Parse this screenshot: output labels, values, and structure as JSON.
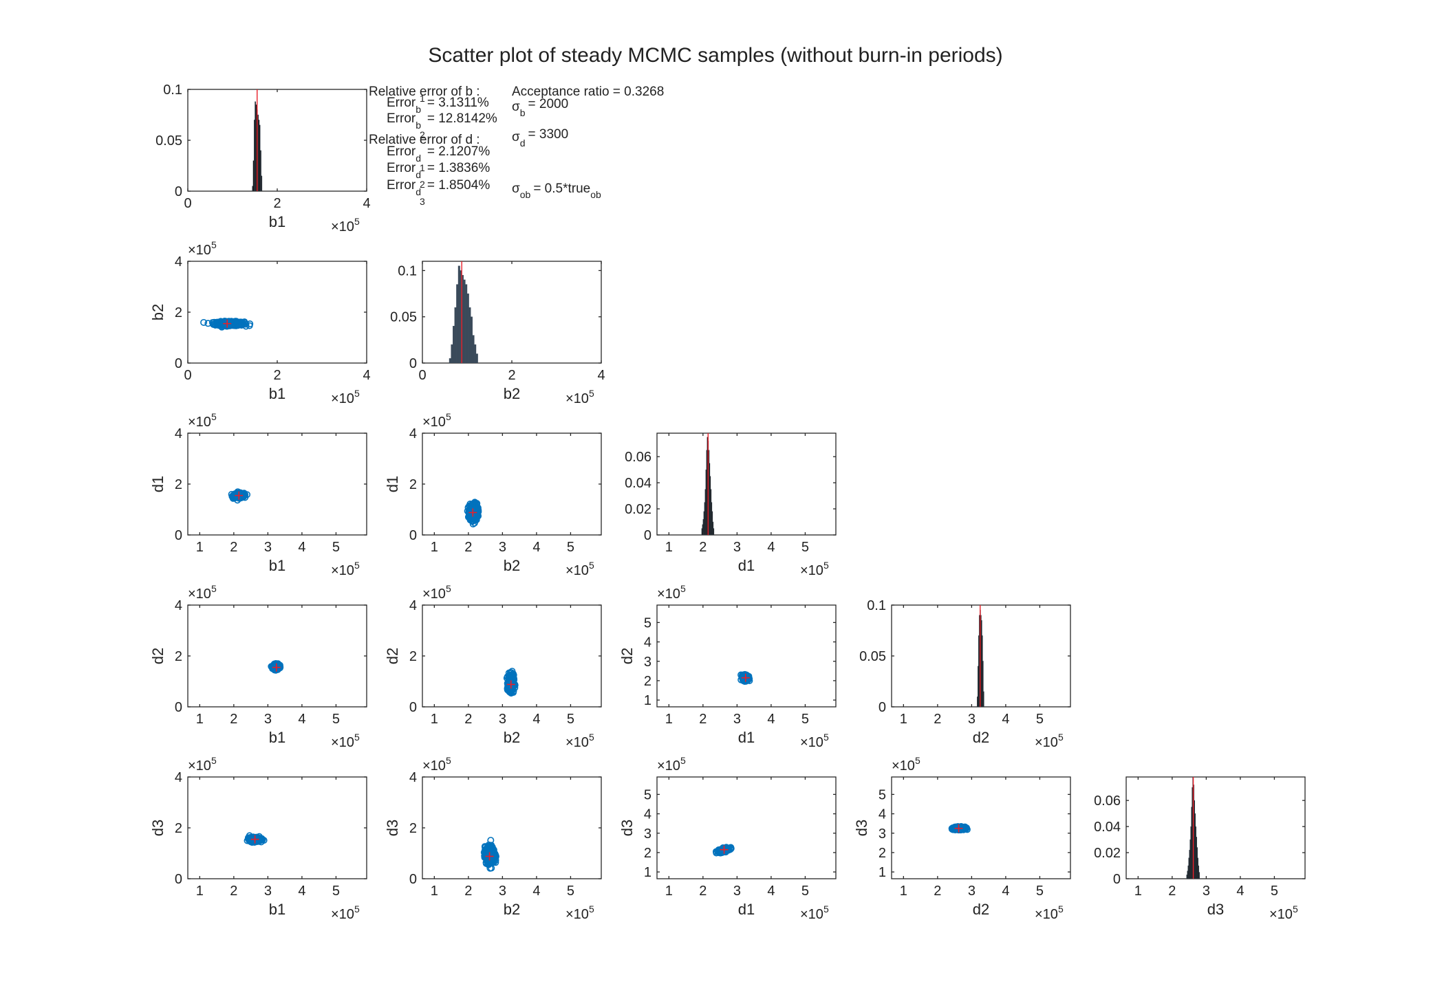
{
  "chart_data": {
    "type": "scatter",
    "title": "Scatter plot of steady MCMC samples (without burn-in periods)",
    "variables": [
      "b1",
      "b2",
      "d1",
      "d2",
      "d3"
    ],
    "colors": {
      "samples": "#0072BD",
      "true_marker": "#E8202A",
      "hist_bar": "#111111",
      "hist_edge": "#3A4A5A"
    },
    "multiplier_base": "×10",
    "multiplier_exp": "5",
    "annotations": {
      "b_header": "Relative error of b :",
      "error_word": "Error",
      "b1_sub": "b",
      "b1_sup": "1",
      "b1_value": "= 3.1311%",
      "b2_sub": "b",
      "b2_sup": "2",
      "b2_value": "= 12.8142%",
      "d_header": "Relative error of d :",
      "d1_sub": "d",
      "d1_sup": "1",
      "d1_value": "= 2.1207%",
      "d2_sub": "d",
      "d2_sup": "2",
      "d2_value": "= 1.3836%",
      "d3_sub": "d",
      "d3_sup": "3",
      "d3_value": "= 1.8504%",
      "acceptance": "Acceptance ratio = 0.3268",
      "sigma": "σ",
      "sigma_b_sub": "b",
      "sigma_b_value": "= 2000",
      "sigma_d_sub": "d",
      "sigma_d_value": "= 3300",
      "sigma_ob_sub": "ob",
      "sigma_ob_value": "= 0.5*true",
      "sigma_ob_tail_sub": "ob"
    },
    "panels": [
      {
        "row": 0,
        "col": 0,
        "kind": "hist",
        "xlabel": "b1",
        "xlim": [
          0,
          400000
        ],
        "xticks": [
          0,
          200000,
          400000
        ],
        "xticklabels": [
          "0",
          "2",
          "4"
        ],
        "ylim": [
          0,
          0.1
        ],
        "yticks": [
          0,
          0.05,
          0.1
        ],
        "yticklabels": [
          "0",
          "0.05",
          "0.1"
        ],
        "true_x": 155000,
        "peak": 0.1,
        "bin_width": 2000,
        "hist": [
          [
            144000,
            0.005
          ],
          [
            146000,
            0.03
          ],
          [
            148000,
            0.07
          ],
          [
            150000,
            0.088
          ],
          [
            152000,
            0.085
          ],
          [
            154000,
            0.08
          ],
          [
            156000,
            0.075
          ],
          [
            158000,
            0.07
          ],
          [
            160000,
            0.065
          ],
          [
            162000,
            0.04
          ],
          [
            164000,
            0.015
          ]
        ]
      },
      {
        "row": 1,
        "col": 0,
        "kind": "scatter",
        "xlabel": "b1",
        "ylabel": "b2",
        "xlim": [
          0,
          400000
        ],
        "ylim": [
          0,
          400000
        ],
        "xticks": [
          0,
          200000,
          400000
        ],
        "xticklabels": [
          "0",
          "2",
          "4"
        ],
        "yticks": [
          0,
          200000,
          400000
        ],
        "yticklabels": [
          "0",
          "2",
          "4"
        ],
        "show_y_mult": true,
        "cloud": {
          "cx": 93000,
          "cy": 155000,
          "sx": 33000,
          "sy": 8000
        },
        "true_point": [
          88000,
          155000
        ]
      },
      {
        "row": 1,
        "col": 1,
        "kind": "hist",
        "xlabel": "b2",
        "xlim": [
          0,
          400000
        ],
        "xticks": [
          0,
          200000,
          400000
        ],
        "xticklabels": [
          "0",
          "2",
          "4"
        ],
        "ylim": [
          0,
          0.11
        ],
        "yticks": [
          0,
          0.05,
          0.1
        ],
        "yticklabels": [
          "0",
          "0.05",
          "0.1"
        ],
        "true_x": 88000,
        "peak": 0.11,
        "bin_width": 4000,
        "hist_color": "#3A4A5A",
        "hist": [
          [
            60000,
            0.005
          ],
          [
            64000,
            0.02
          ],
          [
            68000,
            0.04
          ],
          [
            72000,
            0.06
          ],
          [
            76000,
            0.085
          ],
          [
            80000,
            0.105
          ],
          [
            84000,
            0.1
          ],
          [
            88000,
            0.095
          ],
          [
            92000,
            0.09
          ],
          [
            96000,
            0.085
          ],
          [
            100000,
            0.075
          ],
          [
            104000,
            0.06
          ],
          [
            108000,
            0.05
          ],
          [
            112000,
            0.03
          ],
          [
            116000,
            0.02
          ],
          [
            120000,
            0.01
          ]
        ]
      },
      {
        "row": 2,
        "col": 0,
        "kind": "scatter",
        "xlabel": "b1",
        "ylabel": "d1",
        "xlim": [
          65000,
          590000
        ],
        "ylim": [
          0,
          400000
        ],
        "xticks": [
          100000,
          200000,
          300000,
          400000,
          500000
        ],
        "xticklabels": [
          "1",
          "2",
          "3",
          "4",
          "5"
        ],
        "yticks": [
          0,
          200000,
          400000
        ],
        "yticklabels": [
          "0",
          "2",
          "4"
        ],
        "show_y_mult": true,
        "cloud": {
          "cx": 215000,
          "cy": 155000,
          "sx": 15000,
          "sy": 9000
        },
        "true_point": [
          215000,
          155000
        ]
      },
      {
        "row": 2,
        "col": 1,
        "kind": "scatter",
        "xlabel": "b2",
        "ylabel": "d1",
        "xlim": [
          65000,
          590000
        ],
        "ylim": [
          0,
          400000
        ],
        "xticks": [
          100000,
          200000,
          300000,
          400000,
          500000
        ],
        "xticklabels": [
          "1",
          "2",
          "3",
          "4",
          "5"
        ],
        "yticks": [
          0,
          200000,
          400000
        ],
        "yticklabels": [
          "0",
          "2",
          "4"
        ],
        "show_y_mult": true,
        "cloud": {
          "cx": 215000,
          "cy": 90000,
          "sx": 12000,
          "sy": 33000
        },
        "true_point": [
          213000,
          88000
        ]
      },
      {
        "row": 2,
        "col": 2,
        "kind": "hist",
        "xlabel": "d1",
        "xlim": [
          65000,
          590000
        ],
        "xticks": [
          100000,
          200000,
          300000,
          400000,
          500000
        ],
        "xticklabels": [
          "1",
          "2",
          "3",
          "4",
          "5"
        ],
        "ylim": [
          0,
          0.078
        ],
        "yticks": [
          0,
          0.02,
          0.04,
          0.06
        ],
        "yticklabels": [
          "0",
          "0.02",
          "0.04",
          "0.06"
        ],
        "true_x": 215000,
        "peak": 0.078,
        "bin_width": 2000,
        "hist": [
          [
            196000,
            0.005
          ],
          [
            198000,
            0.008
          ],
          [
            200000,
            0.012
          ],
          [
            202000,
            0.018
          ],
          [
            204000,
            0.025
          ],
          [
            206000,
            0.035
          ],
          [
            208000,
            0.05
          ],
          [
            210000,
            0.065
          ],
          [
            212000,
            0.075
          ],
          [
            214000,
            0.072
          ],
          [
            216000,
            0.065
          ],
          [
            218000,
            0.055
          ],
          [
            220000,
            0.045
          ],
          [
            222000,
            0.035
          ],
          [
            224000,
            0.025
          ],
          [
            226000,
            0.018
          ],
          [
            228000,
            0.01
          ],
          [
            230000,
            0.005
          ]
        ]
      },
      {
        "row": 3,
        "col": 0,
        "kind": "scatter",
        "xlabel": "b1",
        "ylabel": "d2",
        "xlim": [
          65000,
          590000
        ],
        "ylim": [
          0,
          400000
        ],
        "xticks": [
          100000,
          200000,
          300000,
          400000,
          500000
        ],
        "xticklabels": [
          "1",
          "2",
          "3",
          "4",
          "5"
        ],
        "yticks": [
          0,
          200000,
          400000
        ],
        "yticklabels": [
          "0",
          "2",
          "4"
        ],
        "show_y_mult": true,
        "cloud": {
          "cx": 325000,
          "cy": 158000,
          "sx": 8000,
          "sy": 9000
        },
        "true_point": [
          325000,
          155000
        ]
      },
      {
        "row": 3,
        "col": 1,
        "kind": "scatter",
        "xlabel": "b2",
        "ylabel": "d2",
        "xlim": [
          65000,
          590000
        ],
        "ylim": [
          0,
          400000
        ],
        "xticks": [
          100000,
          200000,
          300000,
          400000,
          500000
        ],
        "xticklabels": [
          "1",
          "2",
          "3",
          "4",
          "5"
        ],
        "yticks": [
          0,
          200000,
          400000
        ],
        "yticklabels": [
          "0",
          "2",
          "4"
        ],
        "show_y_mult": true,
        "cloud": {
          "cx": 325000,
          "cy": 92000,
          "sx": 8000,
          "sy": 33000
        },
        "true_point": [
          325000,
          88000
        ]
      },
      {
        "row": 3,
        "col": 2,
        "kind": "scatter",
        "xlabel": "d1",
        "ylabel": "d2",
        "xlim": [
          65000,
          590000
        ],
        "ylim": [
          65000,
          590000
        ],
        "xticks": [
          100000,
          200000,
          300000,
          400000,
          500000
        ],
        "xticklabels": [
          "1",
          "2",
          "3",
          "4",
          "5"
        ],
        "yticks": [
          100000,
          200000,
          300000,
          400000,
          500000
        ],
        "yticklabels": [
          "1",
          "2",
          "3",
          "4",
          "5"
        ],
        "show_y_mult": true,
        "cloud": {
          "cx": 325000,
          "cy": 215000,
          "sx": 8000,
          "sy": 14000
        },
        "true_point": [
          325000,
          215000
        ]
      },
      {
        "row": 3,
        "col": 3,
        "kind": "hist",
        "xlabel": "d2",
        "xlim": [
          65000,
          590000
        ],
        "xticks": [
          100000,
          200000,
          300000,
          400000,
          500000
        ],
        "xticklabels": [
          "1",
          "2",
          "3",
          "4",
          "5"
        ],
        "ylim": [
          0,
          0.1
        ],
        "yticks": [
          0,
          0.05,
          0.1
        ],
        "yticklabels": [
          "0",
          "0.05",
          "0.1"
        ],
        "true_x": 325000,
        "peak": 0.1,
        "bin_width": 2000,
        "hist": [
          [
            316000,
            0.01
          ],
          [
            318000,
            0.04
          ],
          [
            320000,
            0.07
          ],
          [
            322000,
            0.09
          ],
          [
            324000,
            0.095
          ],
          [
            326000,
            0.09
          ],
          [
            328000,
            0.085
          ],
          [
            330000,
            0.07
          ],
          [
            332000,
            0.045
          ],
          [
            334000,
            0.015
          ]
        ]
      },
      {
        "row": 4,
        "col": 0,
        "kind": "scatter",
        "xlabel": "b1",
        "ylabel": "d3",
        "xlim": [
          65000,
          590000
        ],
        "ylim": [
          0,
          400000
        ],
        "xticks": [
          100000,
          200000,
          300000,
          400000,
          500000
        ],
        "xticklabels": [
          "1",
          "2",
          "3",
          "4",
          "5"
        ],
        "yticks": [
          0,
          200000,
          400000
        ],
        "yticklabels": [
          "0",
          "2",
          "4"
        ],
        "show_y_mult": true,
        "cloud": {
          "cx": 262000,
          "cy": 155000,
          "sx": 16000,
          "sy": 8000
        },
        "true_point": [
          262000,
          155000
        ]
      },
      {
        "row": 4,
        "col": 1,
        "kind": "scatter",
        "xlabel": "b2",
        "ylabel": "d3",
        "xlim": [
          65000,
          590000
        ],
        "ylim": [
          0,
          400000
        ],
        "xticks": [
          100000,
          200000,
          300000,
          400000,
          500000
        ],
        "xticklabels": [
          "1",
          "2",
          "3",
          "4",
          "5"
        ],
        "yticks": [
          0,
          200000,
          400000
        ],
        "yticklabels": [
          "0",
          "2",
          "4"
        ],
        "show_y_mult": true,
        "cloud": {
          "cx": 263000,
          "cy": 92000,
          "sx": 14000,
          "sy": 33000
        },
        "true_point": [
          262000,
          88000
        ]
      },
      {
        "row": 4,
        "col": 2,
        "kind": "scatter",
        "xlabel": "d1",
        "ylabel": "d3",
        "xlim": [
          65000,
          590000
        ],
        "ylim": [
          65000,
          590000
        ],
        "xticks": [
          100000,
          200000,
          300000,
          400000,
          500000
        ],
        "xticklabels": [
          "1",
          "2",
          "3",
          "4",
          "5"
        ],
        "yticks": [
          100000,
          200000,
          300000,
          400000,
          500000
        ],
        "yticklabels": [
          "1",
          "2",
          "3",
          "4",
          "5"
        ],
        "show_y_mult": true,
        "cloud": {
          "cx": 262000,
          "cy": 213000,
          "sx": 16000,
          "sy": 8000,
          "tilt": 0.5
        },
        "true_point": [
          262000,
          215000
        ]
      },
      {
        "row": 4,
        "col": 3,
        "kind": "scatter",
        "xlabel": "d2",
        "ylabel": "d3",
        "xlim": [
          65000,
          590000
        ],
        "ylim": [
          65000,
          590000
        ],
        "xticks": [
          100000,
          200000,
          300000,
          400000,
          500000
        ],
        "xticklabels": [
          "1",
          "2",
          "3",
          "4",
          "5"
        ],
        "yticks": [
          100000,
          200000,
          300000,
          400000,
          500000
        ],
        "yticklabels": [
          "1",
          "2",
          "3",
          "4",
          "5"
        ],
        "show_y_mult": true,
        "cloud": {
          "cx": 263000,
          "cy": 325000,
          "sx": 15000,
          "sy": 7000
        },
        "true_point": [
          262000,
          325000
        ]
      },
      {
        "row": 4,
        "col": 4,
        "kind": "hist",
        "xlabel": "d3",
        "xlim": [
          65000,
          590000
        ],
        "xticks": [
          100000,
          200000,
          300000,
          400000,
          500000
        ],
        "xticklabels": [
          "1",
          "2",
          "3",
          "4",
          "5"
        ],
        "ylim": [
          0,
          0.078
        ],
        "yticks": [
          0,
          0.02,
          0.04,
          0.06
        ],
        "yticklabels": [
          "0",
          "0.02",
          "0.04",
          "0.06"
        ],
        "true_x": 262000,
        "peak": 0.078,
        "bin_width": 2000,
        "hist": [
          [
            242000,
            0.003
          ],
          [
            244000,
            0.006
          ],
          [
            246000,
            0.01
          ],
          [
            248000,
            0.016
          ],
          [
            250000,
            0.022
          ],
          [
            252000,
            0.03
          ],
          [
            254000,
            0.04
          ],
          [
            256000,
            0.055
          ],
          [
            258000,
            0.07
          ],
          [
            260000,
            0.078
          ],
          [
            262000,
            0.072
          ],
          [
            264000,
            0.06
          ],
          [
            266000,
            0.05
          ],
          [
            268000,
            0.04
          ],
          [
            270000,
            0.032
          ],
          [
            272000,
            0.024
          ],
          [
            274000,
            0.016
          ],
          [
            276000,
            0.01
          ],
          [
            278000,
            0.005
          ]
        ]
      }
    ]
  }
}
